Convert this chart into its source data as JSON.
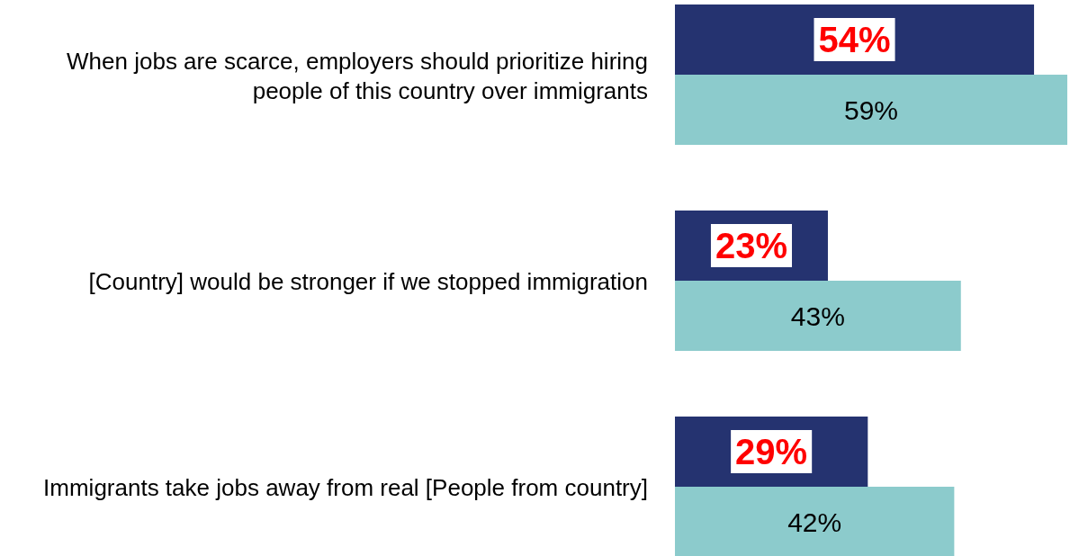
{
  "chart_data": {
    "type": "bar",
    "orientation": "horizontal",
    "categories": [
      "When jobs are scarce, employers should prioritize hiring people of this country over immigrants",
      "[Country] would be stronger if we stopped immigration",
      "Immigrants take jobs away from real [People from country]"
    ],
    "series": [
      {
        "color": "#253370",
        "values": [
          54,
          23,
          29
        ],
        "value_labels": [
          "54%",
          "23%",
          "29%"
        ]
      },
      {
        "color": "#8ccbcc",
        "values": [
          59,
          43,
          42
        ],
        "value_labels": [
          "59%",
          "43%",
          "42%"
        ]
      }
    ],
    "grid": false
  }
}
